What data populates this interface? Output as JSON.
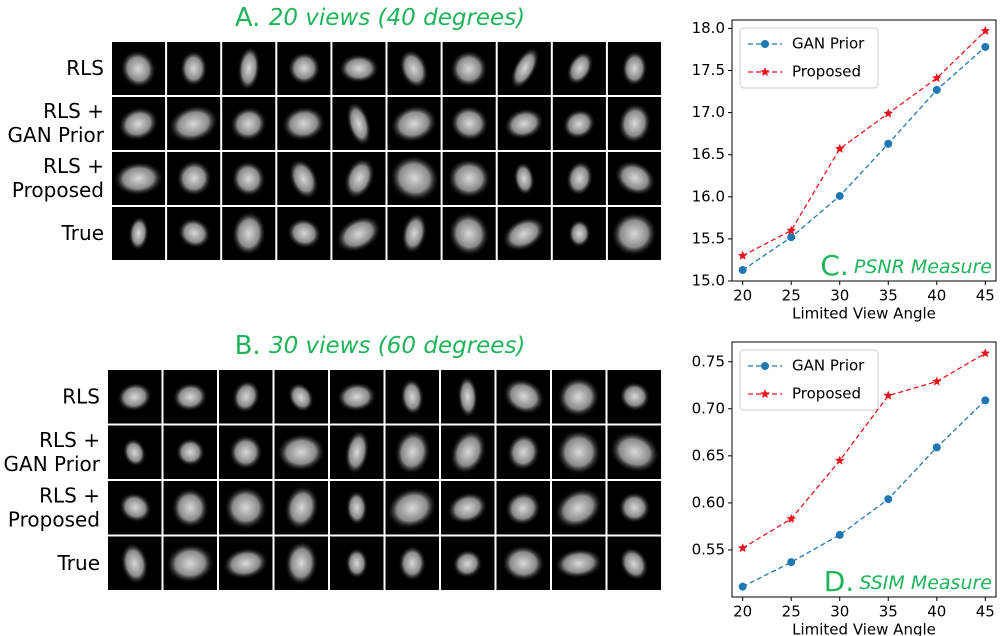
{
  "image_grids": [
    {
      "label": "A.",
      "title": "20 views (40 degrees)",
      "rows": [
        {
          "lines": [
            "RLS"
          ]
        },
        {
          "lines": [
            "RLS +",
            "GAN Prior"
          ]
        },
        {
          "lines": [
            "RLS +",
            "Proposed"
          ]
        },
        {
          "lines": [
            "True"
          ]
        }
      ]
    },
    {
      "label": "B.",
      "title": "30 views (60 degrees)",
      "rows": [
        {
          "lines": [
            "RLS"
          ]
        },
        {
          "lines": [
            "RLS +",
            "GAN Prior"
          ]
        },
        {
          "lines": [
            "RLS +",
            "Proposed"
          ]
        },
        {
          "lines": [
            "True"
          ]
        }
      ]
    }
  ],
  "chart_data": [
    {
      "type": "line",
      "annotation_label": "C.",
      "annotation": "PSNR Measure",
      "xlabel": "Limited View Angle",
      "x": [
        20,
        25,
        30,
        35,
        40,
        45
      ],
      "xlim": [
        18.9,
        46.1
      ],
      "xticks": [
        20,
        25,
        30,
        35,
        40,
        45
      ],
      "ylim": [
        15.0,
        18.1
      ],
      "yticks": [
        {
          "value": 15,
          "label": "15.0"
        },
        15.5,
        {
          "value": 16,
          "label": "16.0"
        },
        16.5,
        {
          "value": 17,
          "label": "17.0"
        },
        17.5,
        {
          "value": 18,
          "label": "18.0"
        }
      ],
      "legend": "upper left",
      "series": [
        {
          "name": "GAN Prior",
          "color": "#1f77b4",
          "marker": "circle",
          "values": [
            15.13,
            15.52,
            16.01,
            16.63,
            17.27,
            17.78
          ]
        },
        {
          "name": "Proposed",
          "color": "#e8141c",
          "marker": "star",
          "values": [
            15.3,
            15.6,
            16.57,
            16.99,
            17.41,
            17.97
          ]
        }
      ]
    },
    {
      "type": "line",
      "annotation_label": "D.",
      "annotation": "SSIM Measure",
      "xlabel": "Limited View Angle",
      "x": [
        20,
        25,
        30,
        35,
        40,
        45
      ],
      "xlim": [
        18.9,
        46.1
      ],
      "xticks": [
        20,
        25,
        30,
        35,
        40,
        45
      ],
      "ylim": [
        0.5,
        0.771
      ],
      "yticks": [
        0.55,
        {
          "value": 0.6,
          "label": "0.60"
        },
        0.65,
        {
          "value": 0.7,
          "label": "0.70"
        },
        0.75
      ],
      "legend": "upper left",
      "series": [
        {
          "name": "GAN Prior",
          "color": "#1f77b4",
          "marker": "circle",
          "values": [
            0.511,
            0.537,
            0.566,
            0.604,
            0.659,
            0.709
          ]
        },
        {
          "name": "Proposed",
          "color": "#e8141c",
          "marker": "star",
          "values": [
            0.552,
            0.583,
            0.645,
            0.714,
            0.729,
            0.759
          ]
        }
      ]
    }
  ]
}
